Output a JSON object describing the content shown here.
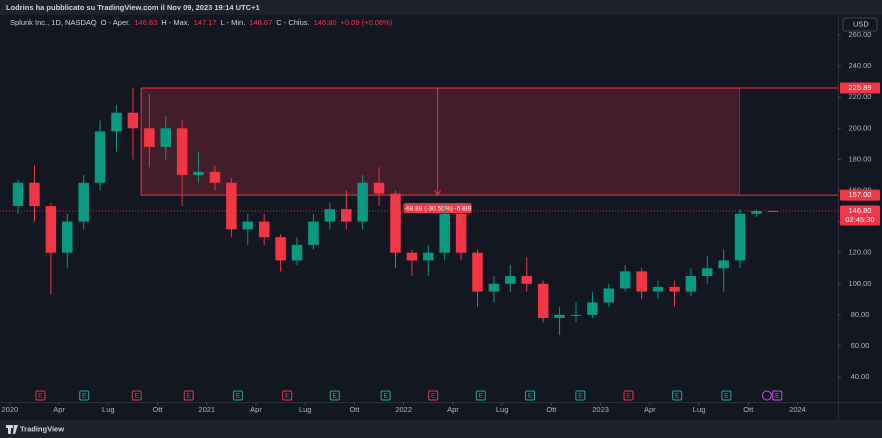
{
  "header": {
    "publisher": "Lodrins ha pubblicato su TradingView.com il Nov 09, 2023 19:14 UTC+1",
    "brand": "TradingView"
  },
  "chart_data": {
    "type": "candlestick",
    "symbol": "Splunk Inc., 1D, NASDAQ",
    "legend": [
      {
        "label": "O - Aper.",
        "value": "146.83"
      },
      {
        "label": "H - Max.",
        "value": "147.17"
      },
      {
        "label": "L - Min.",
        "value": "146.67"
      },
      {
        "label": "C - Chius.",
        "value": "146.80"
      }
    ],
    "change": "+0.09 (+0.06%)",
    "currency": "USD",
    "up_color": "#089981",
    "down_color": "#f23645",
    "x": [
      "2020-01",
      "2020-02",
      "2020-03",
      "2020-04",
      "2020-05",
      "2020-06",
      "2020-07",
      "2020-08",
      "2020-09",
      "2020-10",
      "2020-11",
      "2020-12",
      "2021-01",
      "2021-02",
      "2021-03",
      "2021-04",
      "2021-05",
      "2021-06",
      "2021-07",
      "2021-08",
      "2021-09",
      "2021-10",
      "2021-11",
      "2021-12",
      "2022-01",
      "2022-02",
      "2022-03",
      "2022-04",
      "2022-05",
      "2022-06",
      "2022-07",
      "2022-08",
      "2022-09",
      "2022-10",
      "2022-11",
      "2022-12",
      "2023-01",
      "2023-02",
      "2023-03",
      "2023-04",
      "2023-05",
      "2023-06",
      "2023-07",
      "2023-08",
      "2023-09",
      "2023-10",
      "2023-11"
    ],
    "open": [
      150,
      165,
      150,
      120,
      140,
      165,
      198,
      210,
      200,
      188,
      200,
      170,
      172,
      165,
      135,
      140,
      130,
      115,
      125,
      140,
      148,
      140,
      165,
      158,
      120,
      115,
      120,
      145,
      120,
      95,
      100,
      105,
      100,
      78,
      80,
      80,
      88,
      97,
      108,
      95,
      98,
      95,
      105,
      110,
      115,
      145,
      146.83
    ],
    "high": [
      167,
      176,
      152,
      145,
      170,
      205,
      215,
      226,
      222,
      208,
      205,
      185,
      176,
      168,
      145,
      145,
      132,
      130,
      145,
      152,
      160,
      170,
      175,
      160,
      122,
      125,
      152,
      150,
      122,
      105,
      112,
      117,
      102,
      85,
      88,
      95,
      100,
      112,
      110,
      102,
      102,
      110,
      118,
      122,
      148,
      148,
      147.17
    ],
    "low": [
      145,
      140,
      93,
      110,
      135,
      160,
      185,
      180,
      175,
      180,
      150,
      165,
      160,
      130,
      125,
      125,
      108,
      112,
      122,
      135,
      135,
      135,
      150,
      110,
      105,
      105,
      115,
      115,
      85,
      88,
      95,
      95,
      75,
      67,
      75,
      78,
      85,
      95,
      90,
      90,
      85,
      92,
      100,
      95,
      110,
      143,
      146.67
    ],
    "close": [
      165,
      150,
      120,
      140,
      165,
      198,
      210,
      200,
      188,
      200,
      170,
      172,
      165,
      135,
      140,
      130,
      115,
      125,
      140,
      148,
      140,
      165,
      158,
      120,
      115,
      120,
      145,
      120,
      95,
      100,
      105,
      100,
      78,
      80,
      80,
      88,
      97,
      108,
      95,
      98,
      95,
      105,
      110,
      115,
      145,
      146.83,
      146.8
    ],
    "ylim": [
      30.4,
      264.5
    ],
    "yticks": [
      {
        "value": 40,
        "label": "40.00"
      },
      {
        "value": 60,
        "label": "60.00"
      },
      {
        "value": 80,
        "label": "80.00"
      },
      {
        "value": 100,
        "label": "100.00"
      },
      {
        "value": 120,
        "label": "120.00"
      },
      {
        "value": 140,
        "label": "140.00"
      },
      {
        "value": 160,
        "label": "160.00"
      },
      {
        "value": 180,
        "label": "180.00"
      },
      {
        "value": 200,
        "label": "200.00"
      },
      {
        "value": 220,
        "label": "220.00"
      },
      {
        "value": 240,
        "label": "240.00"
      },
      {
        "value": 260,
        "label": "260.00"
      }
    ],
    "xlim": [
      "2019-12-13",
      "2024-03-15"
    ],
    "xticks": [
      {
        "value": "2020-01",
        "label": "2020"
      },
      {
        "value": "2020-04",
        "label": "Apr"
      },
      {
        "value": "2020-07",
        "label": "Lug"
      },
      {
        "value": "2020-10",
        "label": "Ott"
      },
      {
        "value": "2021-01",
        "label": "2021"
      },
      {
        "value": "2021-04",
        "label": "Apr"
      },
      {
        "value": "2021-07",
        "label": "Lug"
      },
      {
        "value": "2021-10",
        "label": "Ott"
      },
      {
        "value": "2022-01",
        "label": "2022"
      },
      {
        "value": "2022-04",
        "label": "Apr"
      },
      {
        "value": "2022-07",
        "label": "Lug"
      },
      {
        "value": "2022-10",
        "label": "Ott"
      },
      {
        "value": "2023-01",
        "label": "2023"
      },
      {
        "value": "2023-04",
        "label": "Apr"
      },
      {
        "value": "2023-07",
        "label": "Lug"
      },
      {
        "value": "2023-10",
        "label": "Ott"
      },
      {
        "value": "2024-01",
        "label": "2024"
      }
    ],
    "grid": false,
    "range_box": {
      "x_start": "2020-09",
      "x_end": "2023-09-15",
      "top": {
        "value": 225.89,
        "label": "225.89"
      },
      "bottom": {
        "value": 157,
        "label": "157.00"
      },
      "arrow_x": "2022-03-03",
      "measure_label": "-68.89 (-30.50%) -6889",
      "color": "#f23645"
    },
    "last_price": {
      "value": 146.8,
      "label": "146.80",
      "countdown": "02:45:30"
    },
    "events": [
      {
        "x": "2020-02-27",
        "label": "E",
        "color": "#f23645"
      },
      {
        "x": "2020-05-17",
        "label": "E",
        "color": "#22ab94"
      },
      {
        "x": "2020-08-23",
        "label": "E",
        "color": "#f23645"
      },
      {
        "x": "2020-11-28",
        "label": "E",
        "color": "#f23645"
      },
      {
        "x": "2021-02-28",
        "label": "E",
        "color": "#22ab94"
      },
      {
        "x": "2021-05-28",
        "label": "E",
        "color": "#f23645"
      },
      {
        "x": "2021-08-25",
        "label": "E",
        "color": "#22ab94"
      },
      {
        "x": "2021-11-28",
        "label": "E",
        "color": "#22ab94"
      },
      {
        "x": "2022-02-25",
        "label": "E",
        "color": "#f23645"
      },
      {
        "x": "2022-05-22",
        "label": "E",
        "color": "#22ab94"
      },
      {
        "x": "2022-08-22",
        "label": "E",
        "color": "#22ab94"
      },
      {
        "x": "2022-11-24",
        "label": "E",
        "color": "#22ab94"
      },
      {
        "x": "2023-02-22",
        "label": "E",
        "color": "#f23645"
      },
      {
        "x": "2023-05-21",
        "label": "E",
        "color": "#22ab94"
      },
      {
        "x": "2023-08-21",
        "label": "E",
        "color": "#22ab94"
      },
      {
        "x": "2023-11-24",
        "label": "E",
        "color": "#e040fb"
      }
    ]
  }
}
